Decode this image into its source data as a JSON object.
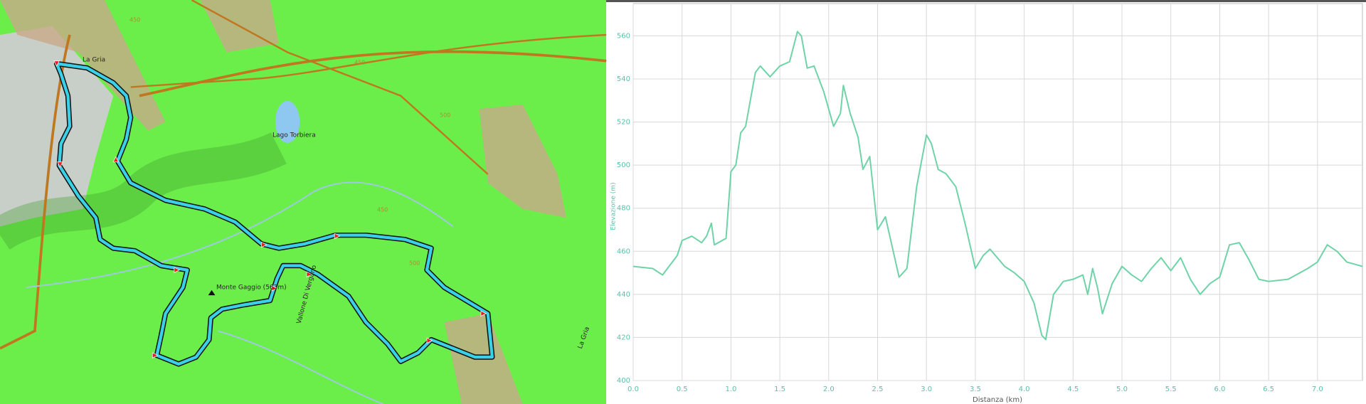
{
  "map": {
    "labels": [
      "La Gria",
      "Lago Torbiera",
      "Monte Gaggio (563m)",
      "Vallone Di Vergano",
      "450",
      "500",
      "450",
      "500",
      "450",
      "La Gria"
    ]
  },
  "chart_data": {
    "type": "line",
    "x_label": "Distanza (km)",
    "y_label": "Elevazione (m)",
    "x": [
      0,
      0.2,
      0.3,
      0.45,
      0.5,
      0.6,
      0.7,
      0.75,
      0.8,
      0.83,
      0.95,
      1.0,
      1.05,
      1.1,
      1.15,
      1.25,
      1.3,
      1.4,
      1.5,
      1.6,
      1.68,
      1.72,
      1.78,
      1.85,
      1.95,
      2.05,
      2.12,
      2.15,
      2.22,
      2.3,
      2.35,
      2.42,
      2.5,
      2.58,
      2.65,
      2.72,
      2.8,
      2.9,
      3.0,
      3.05,
      3.12,
      3.2,
      3.3,
      3.4,
      3.5,
      3.58,
      3.65,
      3.8,
      3.9,
      4.0,
      4.1,
      4.18,
      4.22,
      4.3,
      4.4,
      4.5,
      4.6,
      4.65,
      4.7,
      4.75,
      4.8,
      4.9,
      5.0,
      5.1,
      5.2,
      5.3,
      5.4,
      5.5,
      5.6,
      5.7,
      5.8,
      5.9,
      6.0,
      6.1,
      6.2,
      6.3,
      6.4,
      6.5,
      6.7,
      6.9,
      7.0,
      7.1,
      7.2,
      7.3,
      7.46
    ],
    "values": [
      453,
      452,
      449,
      458,
      465,
      467,
      464,
      467,
      473,
      463,
      466,
      497,
      500,
      515,
      518,
      543,
      546,
      541,
      546,
      548,
      562,
      560,
      545,
      546,
      534,
      518,
      524,
      537,
      524,
      513,
      498,
      504,
      470,
      476,
      462,
      448,
      452,
      490,
      514,
      510,
      498,
      496,
      490,
      472,
      452,
      458,
      461,
      453,
      450,
      446,
      436,
      421,
      419,
      440,
      446,
      447,
      449,
      440,
      452,
      443,
      431,
      445,
      453,
      449,
      446,
      452,
      457,
      451,
      457,
      447,
      440,
      445,
      448,
      463,
      464,
      456,
      447,
      446,
      447,
      452,
      455,
      463,
      460,
      455,
      453
    ],
    "color": "#6fd3a8",
    "xlim": [
      0,
      7.46
    ],
    "xticks": [
      {
        "value": 0,
        "label": "0.0"
      },
      0.5,
      {
        "value": 1,
        "label": "1.0"
      },
      1.5,
      {
        "value": 2,
        "label": "2.0"
      },
      2.5,
      {
        "value": 3,
        "label": "3.0"
      },
      3.5,
      {
        "value": 4,
        "label": "4.0"
      },
      4.5,
      {
        "value": 5,
        "label": "5.0"
      },
      5.5,
      {
        "value": 6,
        "label": "6.0"
      },
      6.5,
      {
        "value": 7,
        "label": "7.0"
      }
    ],
    "ylim": [
      400,
      575
    ],
    "yticks": [
      400,
      420,
      440,
      460,
      480,
      500,
      520,
      540,
      560
    ],
    "grid": true
  }
}
